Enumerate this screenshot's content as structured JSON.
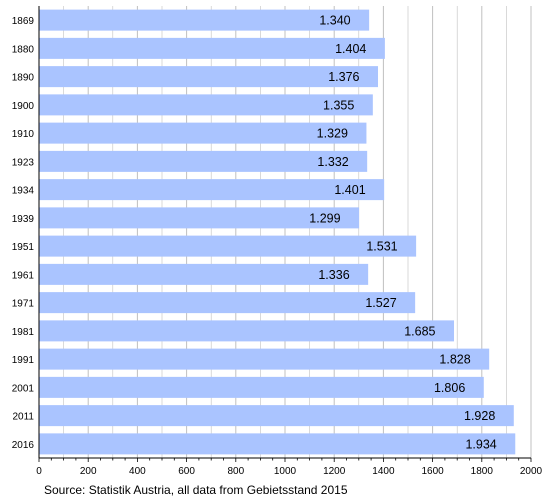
{
  "chart_data": {
    "type": "bar",
    "orientation": "horizontal",
    "categories": [
      "1869",
      "1880",
      "1890",
      "1900",
      "1910",
      "1923",
      "1934",
      "1939",
      "1951",
      "1961",
      "1971",
      "1981",
      "1991",
      "2001",
      "2011",
      "2016"
    ],
    "values": [
      1340,
      1404,
      1376,
      1355,
      1329,
      1332,
      1401,
      1299,
      1531,
      1336,
      1527,
      1685,
      1828,
      1806,
      1928,
      1934
    ],
    "value_labels": [
      "1.340",
      "1.404",
      "1.376",
      "1.355",
      "1.329",
      "1.332",
      "1.401",
      "1.299",
      "1.531",
      "1.336",
      "1.527",
      "1.685",
      "1.828",
      "1.806",
      "1.928",
      "1.934"
    ],
    "xlim": [
      0,
      2000
    ],
    "xticks": [
      "0",
      "200",
      "400",
      "600",
      "800",
      "1000",
      "1200",
      "1400",
      "1600",
      "1800",
      "2000"
    ],
    "xlabel": "",
    "ylabel": "",
    "grid": "vertical",
    "bar_color": "#aac4ff",
    "grid_color": "#c0c0c0"
  },
  "source_note": "Source: Statistik Austria,  all data from Gebietsstand 2015"
}
